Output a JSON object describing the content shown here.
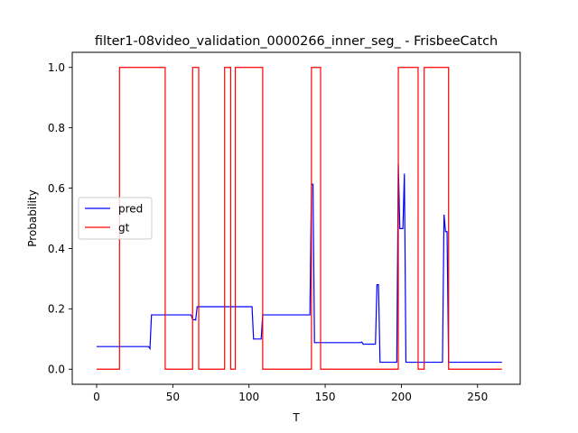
{
  "chart_data": {
    "type": "line",
    "title": "filter1-08video_validation_0000266_inner_seg_ - FrisbeeCatch",
    "xlabel": "T",
    "ylabel": "Probability",
    "xlim": [
      -16,
      278
    ],
    "ylim": [
      -0.05,
      1.05
    ],
    "xticks": [
      0,
      50,
      100,
      150,
      200,
      250
    ],
    "yticks": [
      0.0,
      0.2,
      0.4,
      0.6,
      0.8,
      1.0
    ],
    "xtick_labels": [
      "0",
      "50",
      "100",
      "150",
      "200",
      "250"
    ],
    "ytick_labels": [
      "0.0",
      "0.2",
      "0.4",
      "0.6",
      "0.8",
      "1.0"
    ],
    "grid": false,
    "legend_position": "center-left",
    "series": [
      {
        "name": "pred",
        "color": "#0000ff",
        "x": [
          0,
          34,
          35,
          36,
          62,
          63,
          65,
          66,
          102,
          103,
          108,
          109,
          140,
          141,
          142,
          143,
          173,
          174,
          175,
          183,
          184,
          185,
          186,
          197,
          198,
          199,
          201,
          202,
          203,
          227,
          228,
          229,
          230,
          231,
          266
        ],
        "y": [
          0.075,
          0.075,
          0.068,
          0.18,
          0.18,
          0.165,
          0.163,
          0.207,
          0.207,
          0.1,
          0.1,
          0.18,
          0.18,
          0.613,
          0.613,
          0.088,
          0.088,
          0.09,
          0.083,
          0.083,
          0.28,
          0.28,
          0.023,
          0.023,
          0.68,
          0.466,
          0.466,
          0.648,
          0.023,
          0.023,
          0.512,
          0.456,
          0.456,
          0.023,
          0.023
        ]
      },
      {
        "name": "gt",
        "color": "#ff0000",
        "x": [
          0,
          15,
          15,
          45,
          45,
          63,
          63,
          67,
          67,
          84,
          84,
          88,
          88,
          91,
          91,
          109,
          109,
          141,
          141,
          147,
          147,
          198,
          198,
          211,
          211,
          215,
          215,
          231,
          231,
          266
        ],
        "y": [
          0,
          0,
          1,
          1,
          0,
          0,
          1,
          1,
          0,
          0,
          1,
          1,
          0,
          0,
          1,
          1,
          0,
          0,
          1,
          1,
          0,
          0,
          1,
          1,
          0,
          0,
          1,
          1,
          0,
          0
        ]
      }
    ]
  }
}
